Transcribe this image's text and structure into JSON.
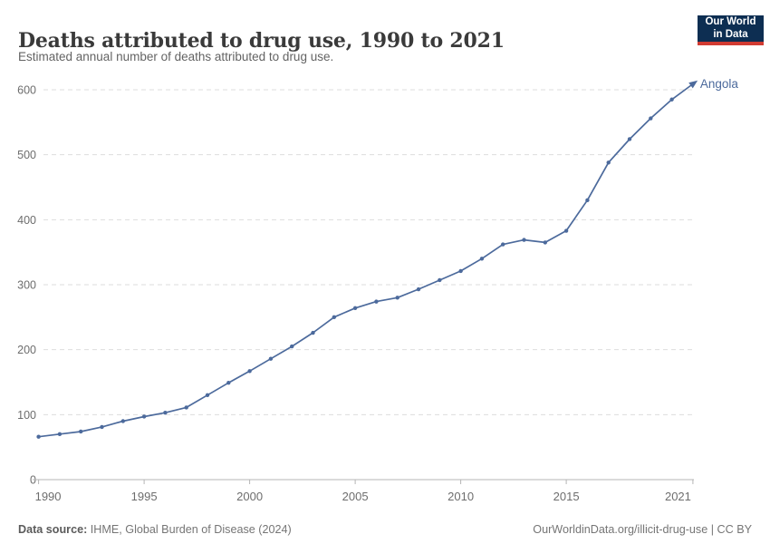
{
  "header": {
    "title": "Deaths attributed to drug use, 1990 to 2021",
    "subtitle": "Estimated annual number of deaths attributed to drug use.",
    "logo": {
      "line1": "Our World",
      "line2": "in Data"
    }
  },
  "footer": {
    "source_label": "Data source:",
    "source_text": " IHME, Global Burden of Disease (2024)",
    "credit": "OurWorldinData.org/illicit-drug-use | CC BY"
  },
  "colors": {
    "series_blue": "#4C6A9C",
    "logo_navy": "#0d2e52",
    "logo_red": "#d13b32",
    "grid_gray": "#dddddd",
    "axis_gray": "#b5b5b5"
  },
  "chart_data": {
    "type": "line",
    "title": "Deaths attributed to drug use, 1990 to 2021",
    "xlabel": "",
    "ylabel": "",
    "xlim": [
      1990,
      2021
    ],
    "ylim": [
      0,
      600
    ],
    "x_ticks": [
      1990,
      1995,
      2000,
      2005,
      2010,
      2015,
      2021
    ],
    "y_ticks": [
      0,
      100,
      200,
      300,
      400,
      500,
      600
    ],
    "grid": "horizontal-dashed",
    "legend_position": "end-of-line-label",
    "series": [
      {
        "name": "Angola",
        "color": "#4C6A9C",
        "years": [
          1990,
          1991,
          1992,
          1993,
          1994,
          1995,
          1996,
          1997,
          1998,
          1999,
          2000,
          2001,
          2002,
          2003,
          2004,
          2005,
          2006,
          2007,
          2008,
          2009,
          2010,
          2011,
          2012,
          2013,
          2014,
          2015,
          2016,
          2017,
          2018,
          2019,
          2020,
          2021
        ],
        "values": [
          66,
          70,
          74,
          81,
          90,
          97,
          103,
          111,
          130,
          149,
          167,
          186,
          205,
          226,
          250,
          264,
          274,
          280,
          293,
          307,
          321,
          340,
          362,
          369,
          365,
          383,
          430,
          488,
          524,
          556,
          585,
          609
        ]
      }
    ]
  }
}
